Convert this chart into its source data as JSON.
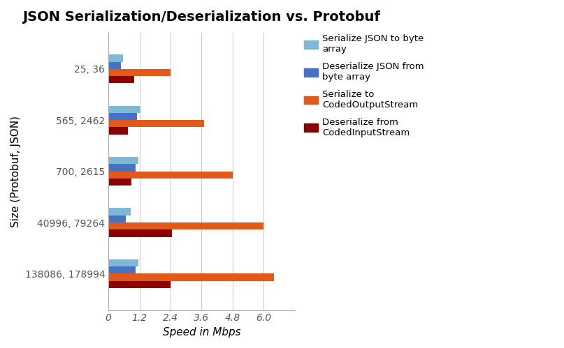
{
  "title": "JSON Serialization/Deserialization vs. Protobuf",
  "xlabel": "Speed in Mbps",
  "ylabel": "Size (Protobuf, JSON)",
  "categories": [
    "25, 36",
    "565, 2462",
    "700, 2615",
    "40996, 79264",
    "138086, 178994"
  ],
  "series": {
    "Serialize JSON to byte array": [
      0.55,
      1.25,
      1.15,
      0.85,
      1.15
    ],
    "Deserialize JSON from byte array": [
      0.48,
      1.1,
      1.05,
      0.68,
      1.05
    ],
    "Serialize to CodedOutputStream": [
      2.4,
      3.7,
      4.8,
      6.0,
      6.4
    ],
    "Deserialize from CodedInputStream": [
      1.0,
      0.75,
      0.88,
      2.45,
      2.4
    ]
  },
  "colors": [
    "#7eb8d4",
    "#4472c4",
    "#e05a1a",
    "#8b0000"
  ],
  "xlim": [
    0,
    7.2
  ],
  "xticks": [
    0,
    1.2,
    2.4,
    3.6,
    4.8,
    6.0
  ],
  "xticklabels": [
    "0",
    "1.2",
    "2.4",
    "3.6",
    "4.8",
    "6.0"
  ],
  "background_color": "#ffffff",
  "grid_color": "#cccccc",
  "title_fontsize": 14,
  "axis_label_fontsize": 11,
  "tick_fontsize": 10,
  "legend_fontsize": 9.5
}
